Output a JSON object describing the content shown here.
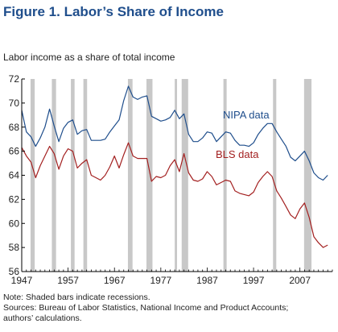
{
  "figure": {
    "title": "Figure 1. Labor’s Share of Income",
    "subtitle": "Labor income as a share of total income"
  },
  "notes": {
    "line1": "Note: Shaded bars indicate recessions.",
    "line2": "Sources: Bureau of Labor Statistics, National Income and Product Accounts;",
    "line3": "authors’ calculations."
  },
  "colors": {
    "nipa": "#1f4e8c",
    "bls": "#a32020",
    "recession": "#c8c8c8",
    "axis": "#000000"
  },
  "chart_data": {
    "type": "line",
    "ylabel": "Labor income as a share of total income",
    "xlim": [
      1947,
      2014
    ],
    "ylim": [
      56,
      72
    ],
    "y_ticks": [
      56,
      58,
      60,
      62,
      64,
      66,
      68,
      70,
      72
    ],
    "x_ticks": [
      1947,
      1957,
      1967,
      1977,
      1987,
      1997,
      2007
    ],
    "legend": "inline labels",
    "recessions": [
      [
        1948.9,
        1949.8
      ],
      [
        1953.5,
        1954.4
      ],
      [
        1957.6,
        1958.4
      ],
      [
        1960.3,
        1961.1
      ],
      [
        1969.9,
        1970.9
      ],
      [
        1973.9,
        1975.2
      ],
      [
        1980.0,
        1980.5
      ],
      [
        1981.5,
        1982.9
      ],
      [
        1990.5,
        1991.2
      ],
      [
        2001.2,
        2001.9
      ],
      [
        2007.9,
        2009.5
      ]
    ],
    "series": [
      {
        "name": "NIPA data",
        "x": [
          1947,
          1948,
          1949,
          1950,
          1951,
          1952,
          1953,
          1954,
          1955,
          1956,
          1957,
          1958,
          1959,
          1960,
          1961,
          1962,
          1963,
          1964,
          1965,
          1966,
          1967,
          1968,
          1969,
          1970,
          1971,
          1972,
          1973,
          1974,
          1975,
          1976,
          1977,
          1978,
          1979,
          1980,
          1981,
          1982,
          1983,
          1984,
          1985,
          1986,
          1987,
          1988,
          1989,
          1990,
          1991,
          1992,
          1993,
          1994,
          1995,
          1996,
          1997,
          1998,
          1999,
          2000,
          2001,
          2002,
          2003,
          2004,
          2005,
          2006,
          2007,
          2008,
          2009,
          2010,
          2011,
          2012,
          2013
        ],
        "values": [
          69.4,
          67.6,
          67.2,
          66.4,
          67.1,
          68.0,
          69.5,
          68.1,
          66.8,
          67.9,
          68.4,
          68.6,
          67.4,
          67.7,
          67.8,
          66.9,
          66.9,
          66.9,
          67.0,
          67.6,
          68.1,
          68.6,
          70.2,
          71.4,
          70.5,
          70.3,
          70.5,
          70.6,
          68.9,
          68.7,
          68.5,
          68.6,
          68.8,
          69.4,
          68.7,
          69.1,
          67.4,
          66.8,
          66.8,
          67.1,
          67.6,
          67.5,
          66.8,
          67.2,
          67.6,
          67.5,
          66.9,
          66.5,
          66.5,
          66.4,
          66.7,
          67.4,
          67.9,
          68.3,
          68.3,
          67.6,
          67.0,
          66.4,
          65.5,
          65.2,
          65.6,
          66.0,
          65.2,
          64.2,
          63.8,
          63.6,
          64.0
        ]
      },
      {
        "name": "BLS data",
        "x": [
          1947,
          1948,
          1949,
          1950,
          1951,
          1952,
          1953,
          1954,
          1955,
          1956,
          1957,
          1958,
          1959,
          1960,
          1961,
          1962,
          1963,
          1964,
          1965,
          1966,
          1967,
          1968,
          1969,
          1970,
          1971,
          1972,
          1973,
          1974,
          1975,
          1976,
          1977,
          1978,
          1979,
          1980,
          1981,
          1982,
          1983,
          1984,
          1985,
          1986,
          1987,
          1988,
          1989,
          1990,
          1991,
          1992,
          1993,
          1994,
          1995,
          1996,
          1997,
          1998,
          1999,
          2000,
          2001,
          2002,
          2003,
          2004,
          2005,
          2006,
          2007,
          2008,
          2009,
          2010,
          2011,
          2012,
          2013
        ],
        "values": [
          66.3,
          65.6,
          65.1,
          63.8,
          64.8,
          65.6,
          66.4,
          65.8,
          64.5,
          65.6,
          66.2,
          66.0,
          64.6,
          65.0,
          65.3,
          64.0,
          63.8,
          63.6,
          64.0,
          64.7,
          65.6,
          64.6,
          65.7,
          66.7,
          65.6,
          65.4,
          65.4,
          65.4,
          63.5,
          63.9,
          63.8,
          64.0,
          64.8,
          65.3,
          64.3,
          65.8,
          64.2,
          63.6,
          63.5,
          63.7,
          64.3,
          63.9,
          63.2,
          63.4,
          63.6,
          63.5,
          62.7,
          62.5,
          62.4,
          62.3,
          62.6,
          63.4,
          63.9,
          64.3,
          63.9,
          62.7,
          62.1,
          61.4,
          60.7,
          60.4,
          61.2,
          61.7,
          60.5,
          58.9,
          58.4,
          58.0,
          58.2
        ]
      }
    ]
  }
}
